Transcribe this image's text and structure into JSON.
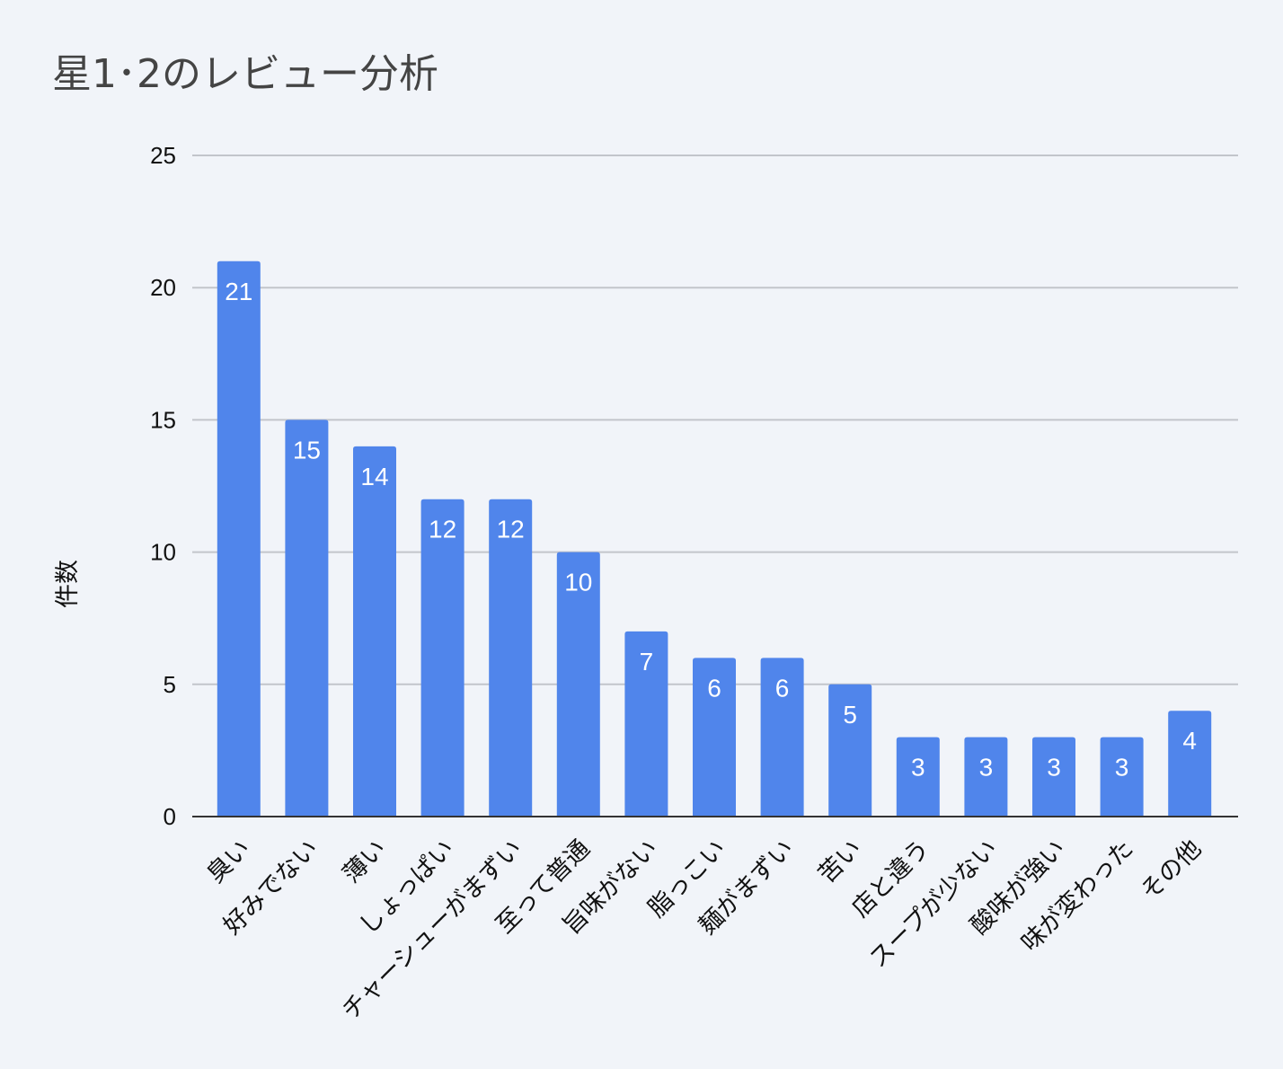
{
  "chart_data": {
    "type": "bar",
    "title": "星1･2のレビュー分析",
    "xlabel": "",
    "ylabel": "件数",
    "ylim": [
      0,
      25
    ],
    "yticks": [
      0,
      5,
      10,
      15,
      20,
      25
    ],
    "grid": true,
    "legend": "none",
    "bar_color": "#5085eb",
    "categories": [
      "臭い",
      "好みでない",
      "薄い",
      "しょっぱい",
      "チャーシューがまずい",
      "至って普通",
      "旨味がない",
      "脂っこい",
      "麺がまずい",
      "苦い",
      "店と違う",
      "スープが少ない",
      "酸味が強い",
      "味が変わった",
      "その他"
    ],
    "values": [
      21,
      15,
      14,
      12,
      12,
      10,
      7,
      6,
      6,
      5,
      3,
      3,
      3,
      3,
      4
    ]
  }
}
